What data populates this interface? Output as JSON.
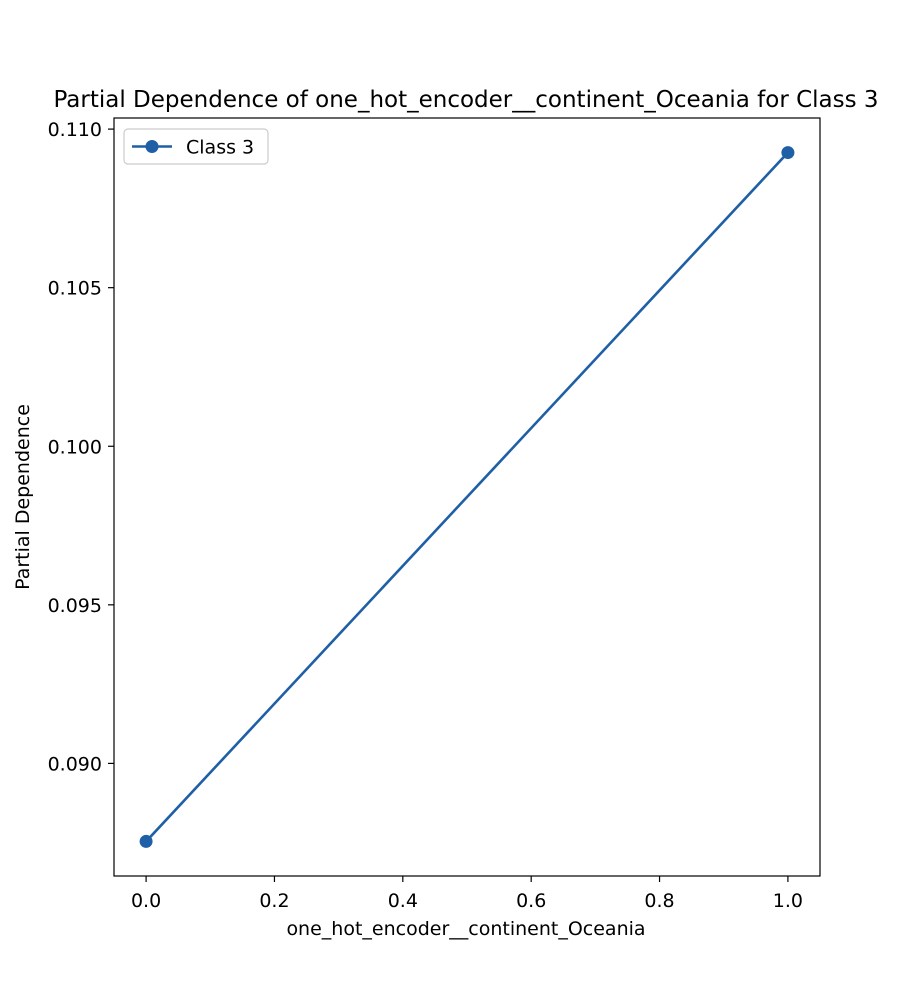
{
  "chart_data": {
    "type": "line",
    "title": "Partial Dependence of one_hot_encoder__continent_Oceania for Class 3",
    "xlabel": "one_hot_encoder__continent_Oceania",
    "ylabel": "Partial Dependence",
    "x": [
      0.0,
      1.0
    ],
    "series": [
      {
        "name": "Class 3",
        "values": [
          0.08754,
          0.10926
        ],
        "color": "#1f5fa6",
        "marker": "circle"
      }
    ],
    "xlim": [
      -0.05,
      1.05
    ],
    "ylim": [
      0.08645,
      0.11035
    ],
    "xticks": [
      "0.0",
      "0.2",
      "0.4",
      "0.6",
      "0.8",
      "1.0"
    ],
    "yticks": [
      "0.090",
      "0.095",
      "0.100",
      "0.105",
      "0.110"
    ],
    "grid": false,
    "legend_position": "top-left"
  }
}
